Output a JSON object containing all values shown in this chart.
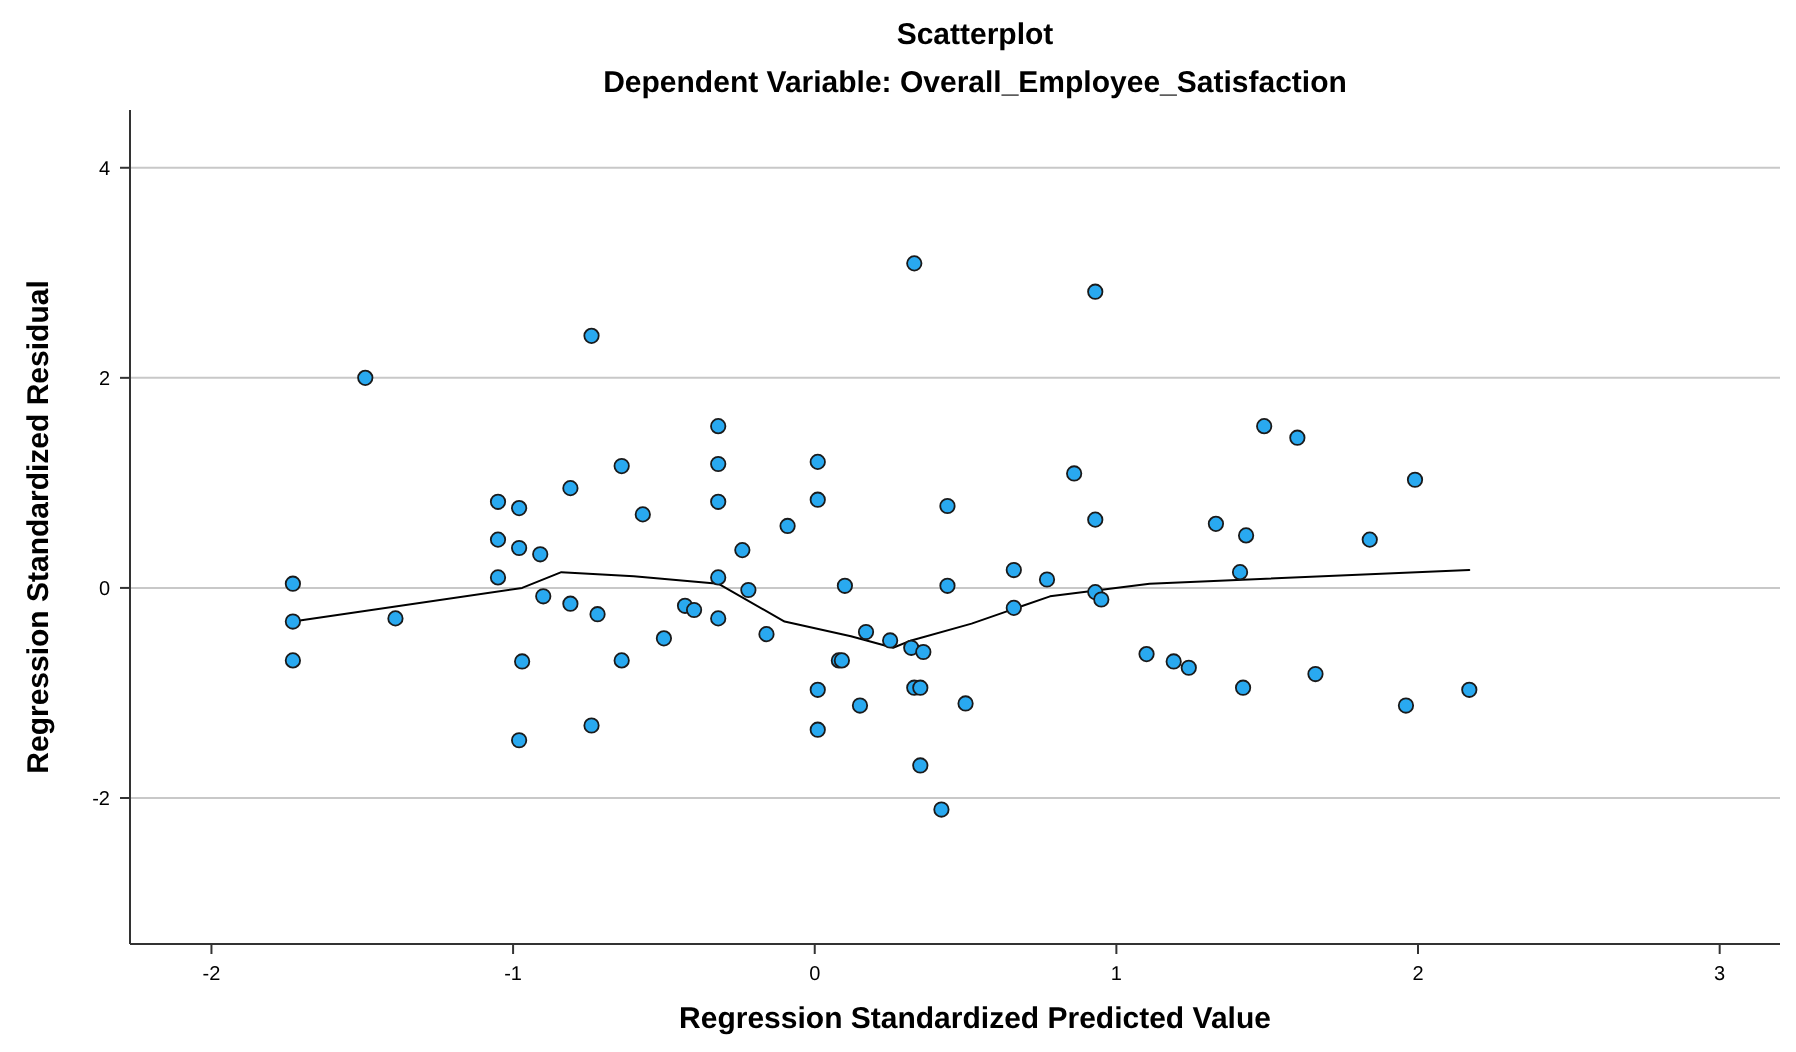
{
  "chart_data": {
    "type": "scatter",
    "title": "Scatterplot",
    "subtitle": "Dependent Variable: Overall_Employee_Satisfaction",
    "xlabel": "Regression Standardized Predicted Value",
    "ylabel": "Regression Standardized Residual",
    "xlim": [
      -2.27,
      3.2
    ],
    "ylim": [
      -3.39,
      4.55
    ],
    "xticks": [
      -2,
      -1,
      0,
      1,
      2,
      3
    ],
    "yticks": [
      -2,
      0,
      2,
      4
    ],
    "grid": "y",
    "marker": "circle",
    "series": [
      {
        "color": "#29a9f0",
        "x": [
          -1.73,
          -1.73,
          -1.73,
          -1.49,
          -1.39,
          -1.05,
          -1.05,
          -1.05,
          -0.98,
          -0.98,
          -0.91,
          -0.9,
          -0.97,
          -0.98,
          -0.74,
          -0.81,
          -0.81,
          -0.72,
          -0.74,
          -0.64,
          -0.64,
          -0.57,
          -0.5,
          -0.43,
          -0.4,
          -0.32,
          -0.32,
          -0.32,
          -0.32,
          -0.32,
          -0.24,
          -0.22,
          -0.16,
          -0.09,
          0.01,
          0.01,
          0.01,
          0.01,
          0.1,
          0.08,
          0.09,
          0.17,
          0.15,
          0.25,
          0.32,
          0.36,
          0.33,
          0.33,
          0.35,
          0.35,
          0.42,
          0.44,
          0.44,
          0.5,
          0.66,
          0.66,
          0.77,
          0.86,
          0.93,
          0.93,
          0.95,
          0.93,
          1.1,
          1.19,
          1.24,
          1.33,
          1.43,
          1.41,
          1.42,
          1.49,
          1.6,
          1.66,
          1.84,
          1.96,
          1.99,
          2.17
        ],
        "values": [
          0.04,
          -0.32,
          -0.69,
          2.0,
          -0.29,
          0.82,
          0.46,
          0.1,
          0.76,
          0.38,
          0.32,
          -0.08,
          -0.7,
          -1.45,
          2.4,
          0.95,
          -0.15,
          -0.25,
          -1.31,
          1.16,
          -0.69,
          0.7,
          -0.48,
          -0.17,
          -0.21,
          1.54,
          1.18,
          0.82,
          0.1,
          -0.29,
          0.36,
          -0.02,
          -0.44,
          0.59,
          1.2,
          0.84,
          -0.97,
          -1.35,
          0.02,
          -0.69,
          -0.69,
          -0.42,
          -1.12,
          -0.5,
          -0.57,
          -0.61,
          3.09,
          -0.95,
          -0.95,
          -1.69,
          -2.11,
          0.02,
          0.78,
          -1.1,
          0.17,
          -0.19,
          0.08,
          1.09,
          -0.04,
          0.65,
          -0.11,
          2.82,
          -0.63,
          -0.7,
          -0.76,
          0.61,
          0.5,
          0.15,
          -0.95,
          1.54,
          1.43,
          -0.82,
          0.46,
          -1.12,
          1.03,
          -0.97
        ]
      },
      {
        "type": "line",
        "color": "#000000",
        "marker": "none",
        "x": [
          -1.73,
          -0.97,
          -0.84,
          -0.6,
          -0.32,
          -0.1,
          0.12,
          0.26,
          0.32,
          0.52,
          0.78,
          1.11,
          2.17
        ],
        "values": [
          -0.32,
          0.0,
          0.15,
          0.11,
          0.04,
          -0.32,
          -0.46,
          -0.57,
          -0.5,
          -0.34,
          -0.08,
          0.04,
          0.17
        ]
      }
    ]
  }
}
